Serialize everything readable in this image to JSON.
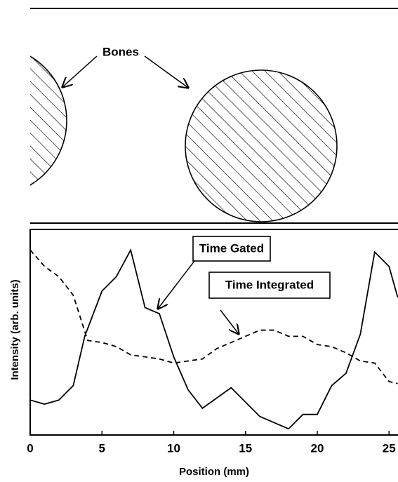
{
  "diagram": {
    "label": "Bones"
  },
  "chart_data": {
    "type": "line",
    "x_label": "Position (mm)",
    "y_label": "Intensity (arb. units)",
    "annotations": [
      "Time Gated",
      "Time Integrated"
    ],
    "xlim": [
      0,
      25.6
    ],
    "ylim": [
      0,
      100
    ],
    "xticks": [
      0,
      5,
      10,
      15,
      20,
      25
    ],
    "series": [
      {
        "name": "Time Gated",
        "color": "#000000",
        "style": "solid",
        "x": [
          0,
          1,
          2,
          3,
          3.8,
          5,
          6,
          7,
          8,
          9,
          10,
          11,
          12,
          13,
          14,
          15,
          16,
          17,
          18,
          19,
          20,
          21,
          22,
          23,
          24,
          25,
          25.6
        ],
        "values": [
          17,
          15,
          17,
          24,
          48,
          70,
          77,
          90,
          62,
          59,
          38,
          22,
          13,
          18,
          23,
          16,
          9,
          6,
          3,
          10,
          10,
          24,
          30,
          49,
          89,
          82,
          67
        ]
      },
      {
        "name": "Time Integrated",
        "color": "#000000",
        "style": "dashed",
        "x": [
          0,
          1,
          2,
          3,
          4,
          5,
          6,
          7,
          8,
          9,
          10,
          11,
          12,
          13,
          14,
          15,
          16,
          17,
          18,
          19,
          20,
          21,
          22,
          23,
          24,
          25,
          25.6
        ],
        "values": [
          90,
          82,
          77,
          68,
          46,
          45,
          43,
          39,
          38,
          37,
          35,
          36,
          37,
          42,
          45,
          48,
          51,
          51,
          48,
          48,
          44,
          43,
          40,
          36,
          35,
          26,
          25
        ]
      }
    ]
  }
}
